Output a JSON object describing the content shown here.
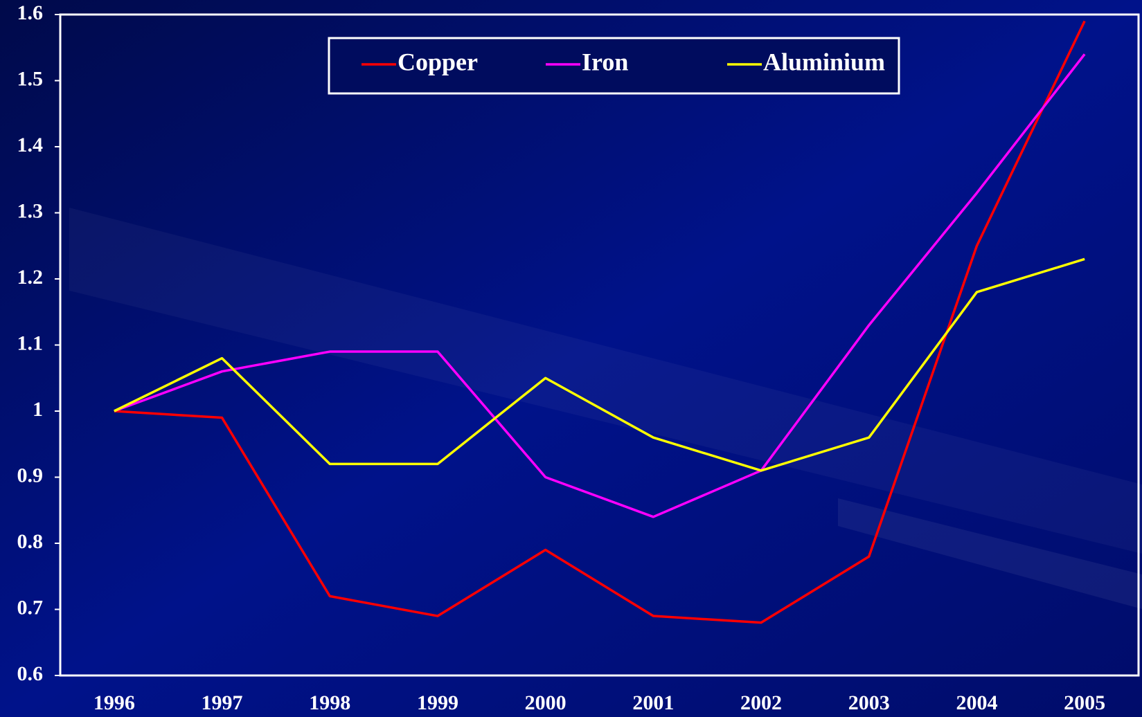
{
  "chart_data": {
    "type": "line",
    "categories": [
      "1996",
      "1997",
      "1998",
      "1999",
      "2000",
      "2001",
      "2002",
      "2003",
      "2004",
      "2005"
    ],
    "series": [
      {
        "name": "Copper",
        "color": "#ff0000",
        "values": [
          1.0,
          0.99,
          0.72,
          0.69,
          0.79,
          0.69,
          0.68,
          0.78,
          1.25,
          1.59
        ]
      },
      {
        "name": "Iron",
        "color": "#ff00ff",
        "values": [
          1.0,
          1.06,
          1.09,
          1.09,
          0.9,
          0.84,
          0.91,
          1.13,
          1.33,
          1.54
        ]
      },
      {
        "name": "Aluminium",
        "color": "#ffff00",
        "values": [
          1.0,
          1.08,
          0.92,
          0.92,
          1.05,
          0.96,
          0.91,
          0.96,
          1.18,
          1.23
        ]
      }
    ],
    "ylim": [
      0.6,
      1.6
    ],
    "yticks": [
      0.6,
      0.7,
      0.8,
      0.9,
      1,
      1.1,
      1.2,
      1.3,
      1.4,
      1.5,
      1.6
    ],
    "legend": "top"
  }
}
